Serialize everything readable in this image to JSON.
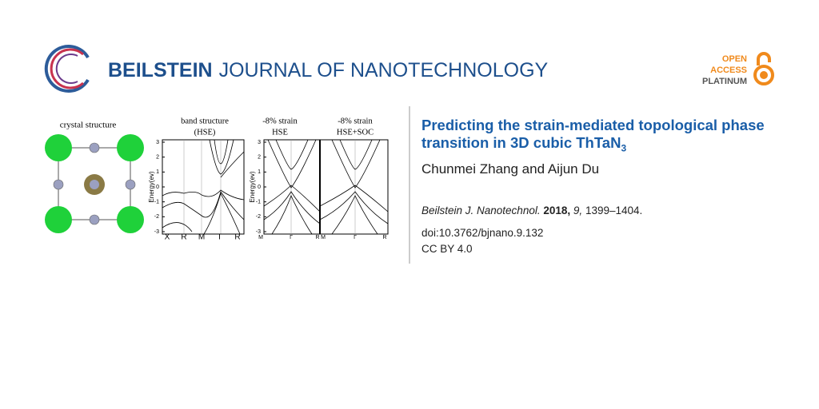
{
  "header": {
    "journal_name_bold": "BEILSTEIN",
    "journal_name_rest": "JOURNAL OF NANOTECHNOLOGY",
    "badge": [
      "OPEN",
      "ACCESS",
      "PLATINUM"
    ]
  },
  "figure": {
    "crystal_label": "crystal structure",
    "panels": [
      {
        "title": [
          "band structure",
          "(HSE)"
        ],
        "y_label": "Energy(ev)",
        "y_ticks": [
          "3",
          "2",
          "1",
          "0",
          "-1",
          "-2",
          "-3"
        ],
        "k_labels": [
          "X",
          "R",
          "M",
          "Γ",
          "R"
        ]
      },
      {
        "title": [
          "-8% strain",
          "HSE"
        ],
        "y_label": "Energy(ev)",
        "y_ticks": [
          "3",
          "2",
          "1",
          "0",
          "-1",
          "-2",
          "-3"
        ],
        "k_labels": [
          "M",
          "Γ",
          "R"
        ]
      },
      {
        "title": [
          "-8% strain",
          "HSE+SOC"
        ],
        "k_labels": [
          "M",
          "Γ",
          "R"
        ]
      }
    ]
  },
  "article": {
    "title": "Predicting the strain-mediated topological phase transition in 3D cubic ThTaN",
    "title_subscript": "3",
    "authors": "Chunmei Zhang and Aijun Du",
    "citation": {
      "journal": "Beilstein J. Nanotechnol.",
      "year": "2018,",
      "volume": "9,",
      "pages": "1399–1404."
    },
    "doi": "doi:10.3762/bjnano.9.132",
    "license": "CC BY 4.0"
  }
}
